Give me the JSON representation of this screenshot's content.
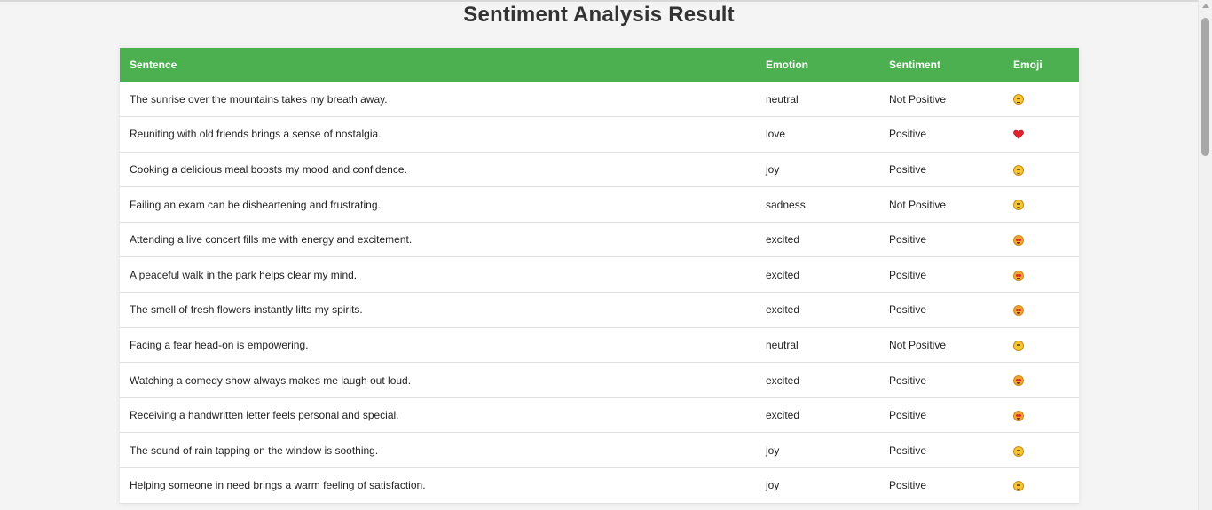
{
  "page": {
    "title": "Sentiment Analysis Result"
  },
  "table": {
    "headers": [
      "Sentence",
      "Emotion",
      "Sentiment",
      "Emoji"
    ],
    "rows": [
      {
        "sentence": "The sunrise over the mountains takes my breath away.",
        "emotion": "neutral",
        "sentiment": "Not Positive",
        "emoji": "neutral-face-icon"
      },
      {
        "sentence": "Reuniting with old friends brings a sense of nostalgia.",
        "emotion": "love",
        "sentiment": "Positive",
        "emoji": "red-heart-icon"
      },
      {
        "sentence": "Cooking a delicious meal boosts my mood and confidence.",
        "emotion": "joy",
        "sentiment": "Positive",
        "emoji": "smiling-face-icon"
      },
      {
        "sentence": "Failing an exam can be disheartening and frustrating.",
        "emotion": "sadness",
        "sentiment": "Not Positive",
        "emoji": "sad-face-icon"
      },
      {
        "sentence": "Attending a live concert fills me with energy and excitement.",
        "emotion": "excited",
        "sentiment": "Positive",
        "emoji": "heart-eyes-face-icon"
      },
      {
        "sentence": "A peaceful walk in the park helps clear my mind.",
        "emotion": "excited",
        "sentiment": "Positive",
        "emoji": "heart-eyes-face-icon"
      },
      {
        "sentence": "The smell of fresh flowers instantly lifts my spirits.",
        "emotion": "excited",
        "sentiment": "Positive",
        "emoji": "heart-eyes-face-icon"
      },
      {
        "sentence": "Facing a fear head-on is empowering.",
        "emotion": "neutral",
        "sentiment": "Not Positive",
        "emoji": "neutral-face-icon"
      },
      {
        "sentence": "Watching a comedy show always makes me laugh out loud.",
        "emotion": "excited",
        "sentiment": "Positive",
        "emoji": "heart-eyes-face-icon"
      },
      {
        "sentence": "Receiving a handwritten letter feels personal and special.",
        "emotion": "excited",
        "sentiment": "Positive",
        "emoji": "heart-eyes-face-icon"
      },
      {
        "sentence": "The sound of rain tapping on the window is soothing.",
        "emotion": "joy",
        "sentiment": "Positive",
        "emoji": "smiling-face-icon"
      },
      {
        "sentence": "Helping someone in need brings a warm feeling of satisfaction.",
        "emotion": "joy",
        "sentiment": "Positive",
        "emoji": "smiling-face-icon"
      }
    ]
  },
  "colors": {
    "header_background": "#4caf50",
    "header_text": "#ffffff",
    "page_background": "#f4f4f4",
    "row_border": "#e0e0e0"
  }
}
